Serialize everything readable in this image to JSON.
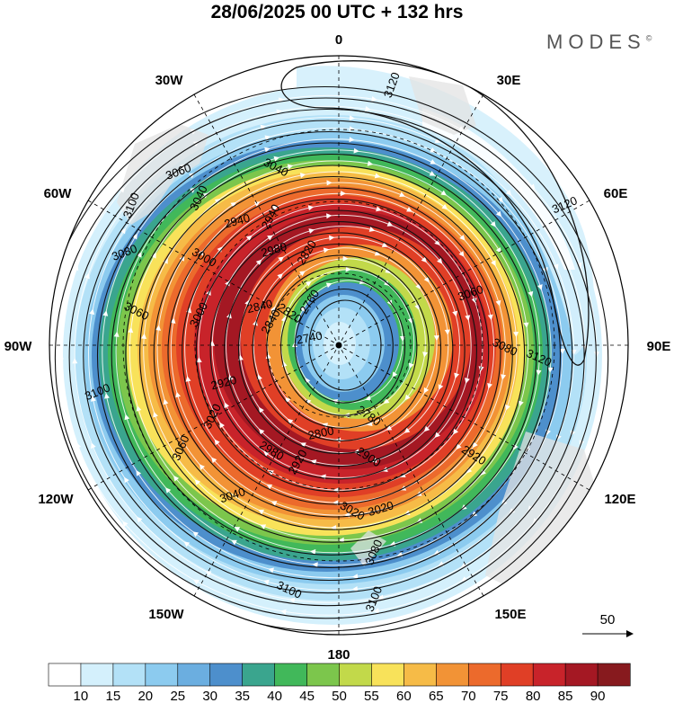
{
  "title": "28/06/2025  00 UTC  + 132 hrs",
  "brand": "MODES",
  "brand_mark": "©",
  "longitude_labels": {
    "n0": "0",
    "n30e": "30E",
    "n60e": "60E",
    "e90": "90E",
    "n120e": "120E",
    "n150e": "150E",
    "s180": "180",
    "n150w": "150W",
    "n120w": "120W",
    "w90": "90W",
    "n60w": "60W",
    "n30w": "30W"
  },
  "vector_reference": {
    "label": "50"
  },
  "colorbar": {
    "ticks": [
      "10",
      "15",
      "20",
      "25",
      "30",
      "35",
      "40",
      "45",
      "50",
      "55",
      "60",
      "65",
      "70",
      "75",
      "80",
      "85",
      "90"
    ],
    "colors": [
      "#ffffff",
      "#d4f0fc",
      "#b3e1f7",
      "#8ccbef",
      "#6baee0",
      "#4d8fcc",
      "#3aa58e",
      "#41b85a",
      "#7cc64c",
      "#c2d94a",
      "#f8e25a",
      "#f6bb47",
      "#f29336",
      "#ec6a2c",
      "#e03f26",
      "#c8232a",
      "#a41823",
      "#871a1e"
    ]
  },
  "map_colors": {
    "land": "#e3e3e3",
    "contour": "#111111",
    "streamline": "#ffffff"
  },
  "contour_labels": [
    "3120",
    "3120",
    "3120",
    "3100",
    "3100",
    "3100",
    "3100",
    "3080",
    "3080",
    "3080",
    "3060",
    "3060",
    "3060",
    "3060",
    "3040",
    "3040",
    "3040",
    "3020",
    "3020",
    "3020",
    "3000",
    "3000",
    "2980",
    "2980",
    "2940",
    "2940",
    "2920",
    "2920",
    "2920",
    "2900",
    "2840",
    "2840",
    "2820",
    "2820",
    "2800",
    "2780",
    "2760",
    "2740"
  ]
}
